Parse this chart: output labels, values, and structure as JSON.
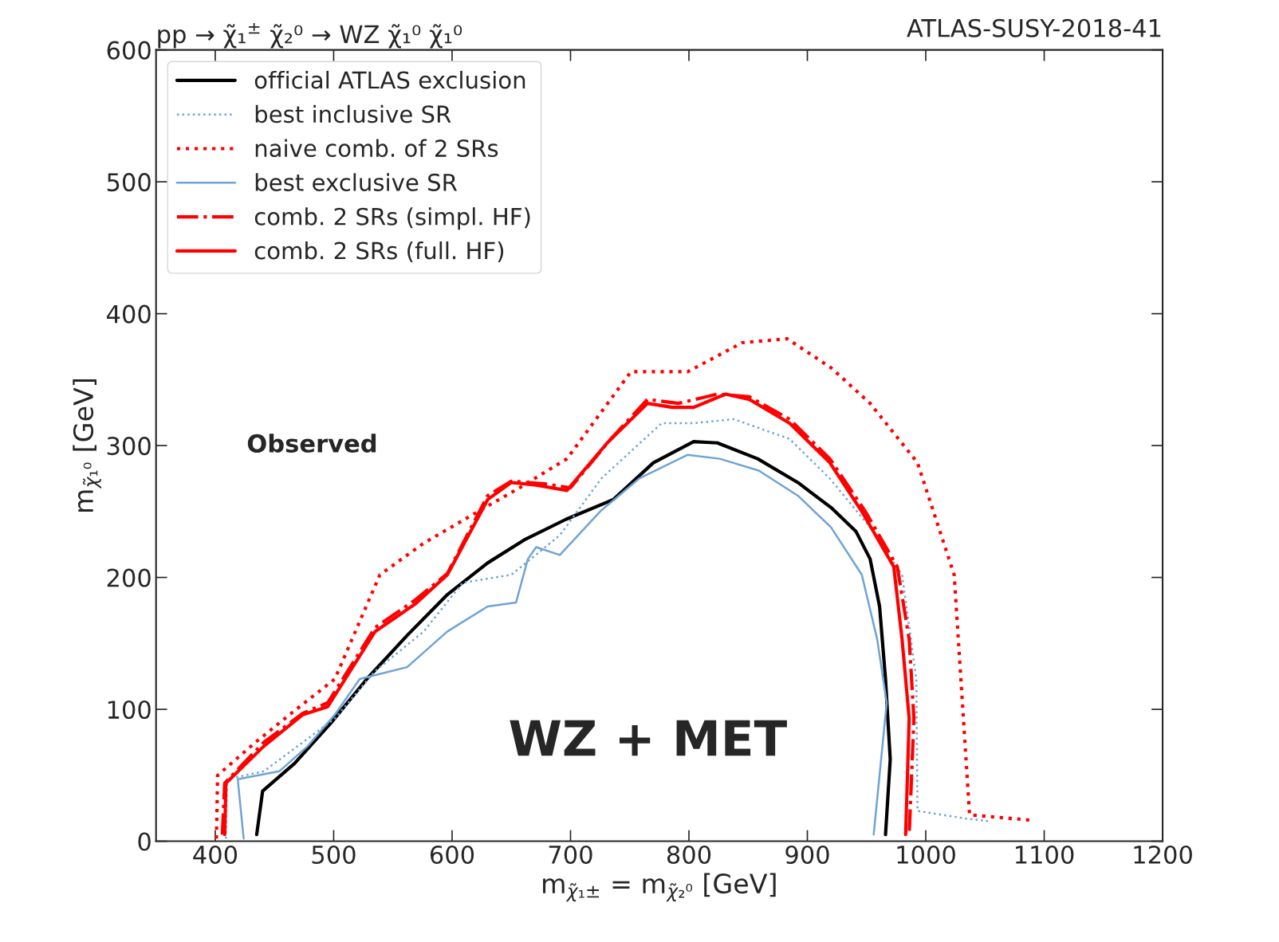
{
  "chart_data": {
    "type": "line",
    "title": "pp → χ̃₁$^{±}$ χ̃₂⁰ → WZ χ̃₁⁰ χ̃₁⁰",
    "xlabel": "m$_{χ̃₁±}$ = m$_{χ̃₂⁰}$ [GeV]",
    "ylabel": "m$_{χ̃₁⁰}$ [GeV]",
    "xlim": [
      350,
      1200
    ],
    "ylim": [
      0,
      600
    ],
    "xticks": [
      400,
      500,
      600,
      700,
      800,
      900,
      1000,
      1100,
      1200
    ],
    "yticks": [
      0,
      100,
      200,
      300,
      400,
      500,
      600
    ],
    "grid": false,
    "legend": "top left",
    "annotations": [
      "ATLAS-SUSY-2018-41",
      "Observed",
      "WZ + MET"
    ],
    "series": [
      {
        "name": "official ATLAS exclusion",
        "color": "#000000",
        "line_style": "solid",
        "x": [
          435,
          440,
          467,
          498,
          528,
          562,
          596,
          630,
          662,
          696,
          736,
          770,
          804,
          824,
          858,
          892,
          920,
          941,
          953,
          961,
          966,
          970,
          966
        ],
        "values": [
          5,
          38,
          59,
          90,
          123,
          156,
          187,
          211,
          229,
          244,
          259,
          287,
          303,
          302,
          290,
          272,
          253,
          235,
          214,
          178,
          123,
          62,
          5
        ]
      },
      {
        "name": "best inclusive SR",
        "color": "#6fa3d6",
        "line_style": "dotted",
        "x": [
          409,
          410,
          441,
          474,
          501,
          535,
          576,
          609,
          650,
          691,
          726,
          777,
          804,
          838,
          885,
          919,
          953,
          980,
          992,
          993,
          1035,
          1055
        ],
        "values": [
          2,
          47,
          53,
          75,
          93,
          129,
          159,
          196,
          202,
          232,
          275,
          317,
          317,
          320,
          305,
          275,
          238,
          202,
          123,
          23,
          17,
          15
        ]
      },
      {
        "name": "naive comb. of 2 SRs",
        "color": "#ff0000",
        "line_style": "dotted",
        "x": [
          401,
          402,
          434,
          467,
          501,
          539,
          576,
          622,
          657,
          697,
          751,
          799,
          845,
          883,
          920,
          953,
          993,
          1024,
          1037,
          1088
        ],
        "values": [
          2,
          50,
          75,
          99,
          123,
          202,
          226,
          250,
          268,
          290,
          356,
          356,
          378,
          381,
          359,
          332,
          287,
          202,
          20,
          16
        ]
      },
      {
        "name": "best exclusive SR",
        "color": "#6fa3d6",
        "line_style": "solid",
        "x": [
          424,
          419,
          454,
          478,
          501,
          522,
          562,
          596,
          630,
          654,
          664,
          671,
          691,
          725,
          758,
          799,
          826,
          859,
          892,
          920,
          946,
          959,
          967,
          956
        ],
        "values": [
          2,
          47,
          53,
          72,
          96,
          123,
          132,
          159,
          178,
          181,
          214,
          223,
          217,
          250,
          275,
          293,
          290,
          281,
          262,
          238,
          202,
          153,
          105,
          5
        ]
      },
      {
        "name": "comb. 2 SRs (simpl. HF)",
        "color": "#ff0000",
        "line_style": "dashdot",
        "x": [
          406,
          408,
          441,
          474,
          495,
          535,
          569,
          596,
          630,
          650,
          678,
          700,
          734,
          765,
          791,
          824,
          851,
          885,
          919,
          949,
          976,
          986,
          990,
          986
        ],
        "values": [
          5,
          44,
          75,
          97,
          105,
          162,
          183,
          203,
          262,
          273,
          271,
          268,
          305,
          335,
          332,
          339,
          337,
          320,
          290,
          250,
          208,
          153,
          93,
          5
        ]
      },
      {
        "name": "comb. 2 SRs (full. HF)",
        "color": "#ff0000",
        "line_style": "solid",
        "x": [
          408,
          409,
          441,
          474,
          495,
          535,
          569,
          596,
          630,
          650,
          671,
          697,
          731,
          765,
          786,
          804,
          831,
          851,
          885,
          919,
          946,
          973,
          980,
          986,
          983
        ],
        "values": [
          5,
          44,
          72,
          96,
          102,
          159,
          180,
          202,
          259,
          272,
          270,
          266,
          302,
          332,
          329,
          329,
          339,
          335,
          317,
          287,
          250,
          208,
          153,
          93,
          5
        ]
      }
    ]
  }
}
